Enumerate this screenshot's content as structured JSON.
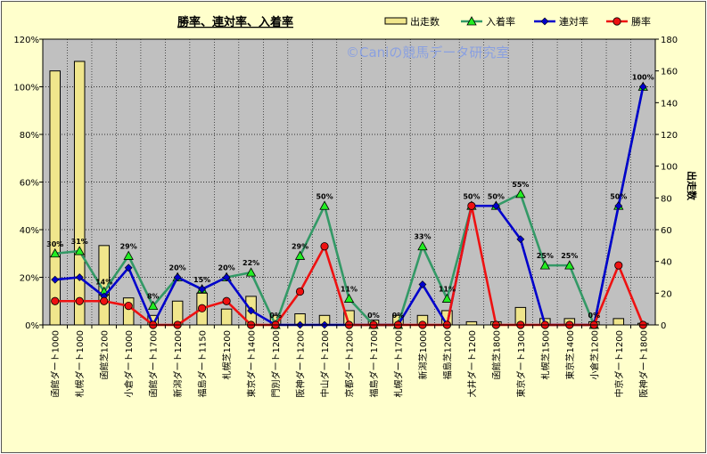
{
  "chart_data": {
    "type": "bar+line",
    "title": "勝率、連対率、入着率",
    "watermark": "©Caniの競馬データ研究室",
    "y2label": "出走数",
    "ylim": [
      0,
      120
    ],
    "y2lim": [
      0,
      180
    ],
    "y_ticks": [
      "0%",
      "20%",
      "40%",
      "60%",
      "80%",
      "100%",
      "120%"
    ],
    "y2_ticks": [
      "0",
      "20",
      "40",
      "60",
      "80",
      "100",
      "120",
      "140",
      "160",
      "180"
    ],
    "grid": true,
    "legend_position": "top-right",
    "categories": [
      "函館ダート1000",
      "札幌ダート1000",
      "函館芝1200",
      "小倉ダート1000",
      "函館ダート1700",
      "新潟ダート1200",
      "福島ダート1150",
      "札幌芝1200",
      "東京ダート1400",
      "門別ダート1200",
      "阪神ダート1200",
      "中山ダート1200",
      "京都ダート1200",
      "福島ダート1700",
      "札幌ダート1700",
      "新潟芝1000",
      "福島芝1200",
      "大井ダート1200",
      "函館芝1800",
      "東京ダート1300",
      "札幌芝1500",
      "東京芝1400",
      "小倉芝1200",
      "中京ダート1200",
      "阪神ダート1800"
    ],
    "series": [
      {
        "name": "出走数",
        "kind": "bar",
        "axis": "right",
        "color": "#f0e68c",
        "values": [
          160,
          166,
          50,
          17,
          6,
          15,
          20,
          10,
          18,
          6,
          7,
          6,
          9,
          3,
          6,
          6,
          9,
          2,
          2,
          11,
          4,
          4,
          2,
          4,
          1
        ]
      },
      {
        "name": "入着率",
        "kind": "line",
        "axis": "left",
        "color": "#339966",
        "marker": "triangle",
        "values": [
          30,
          31,
          14,
          29,
          8,
          20,
          15,
          20,
          22,
          0,
          29,
          50,
          11,
          0,
          0,
          33,
          11,
          50,
          50,
          55,
          25,
          25,
          0,
          50,
          100
        ],
        "labels": [
          "30%",
          "31%",
          "14%",
          "29%",
          "8%",
          "20%",
          "15%",
          "20%",
          "22%",
          "0%",
          "29%",
          "50%",
          "11%",
          "0%",
          "0%",
          "33%",
          "11%",
          "50%",
          "50%",
          "55%",
          "25%",
          "25%",
          "0%",
          "50%",
          "100%"
        ]
      },
      {
        "name": "連対率",
        "kind": "line",
        "axis": "left",
        "color": "#0000cc",
        "marker": "diamond",
        "values": [
          19,
          20,
          12,
          24,
          0,
          20,
          15,
          20,
          6,
          0,
          0,
          0,
          0,
          0,
          0,
          17,
          0,
          50,
          50,
          36,
          0,
          0,
          0,
          50,
          100
        ]
      },
      {
        "name": "勝率",
        "kind": "line",
        "axis": "left",
        "color": "#ee1111",
        "marker": "circle",
        "values": [
          10,
          10,
          10,
          8,
          0,
          0,
          7,
          10,
          0,
          0,
          14,
          33,
          0,
          0,
          0,
          0,
          0,
          50,
          0,
          0,
          0,
          0,
          0,
          25,
          0
        ]
      }
    ]
  }
}
